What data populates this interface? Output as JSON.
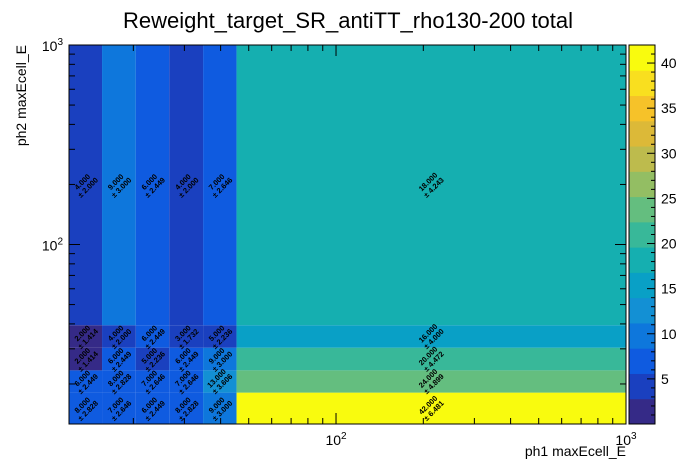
{
  "chart_data": {
    "type": "heatmap",
    "title": "Reweight_target_SR_antiTT_rho130-200 total",
    "xlabel": "ph1 maxEcell_E",
    "ylabel": "ph2 maxEcell_E",
    "x_scale": "log",
    "y_scale": "log",
    "xlim": [
      12,
      1000
    ],
    "ylim": [
      12.6,
      1000
    ],
    "x_ticks": [
      {
        "value": 100,
        "base": "10",
        "exp": "2"
      },
      {
        "value": 1000,
        "base": "10",
        "exp": "3"
      }
    ],
    "y_ticks": [
      {
        "value": 100,
        "base": "10",
        "exp": "2"
      },
      {
        "value": 1000,
        "base": "10",
        "exp": "3"
      }
    ],
    "colorbar": {
      "min": 0,
      "max": 42,
      "ticks": [
        5,
        10,
        15,
        20,
        25,
        30,
        35,
        40
      ]
    },
    "palette": [
      "#352a87",
      "#1a40bf",
      "#0f5be0",
      "#0e77dc",
      "#1390d4",
      "#09a0c6",
      "#15afb0",
      "#38b899",
      "#64be7f",
      "#93be63",
      "#bdbb4d",
      "#dcb938",
      "#f6c229",
      "#f9df1f",
      "#f9fb0e"
    ],
    "x_edges": [
      12,
      15.6,
      20.4,
      26.6,
      34.8,
      45.4,
      1000
    ],
    "y_edges": [
      12.6,
      18.1,
      23.4,
      30.4,
      39.4,
      1000
    ],
    "cells": [
      {
        "ix": 0,
        "iy": 0,
        "value": 8.0,
        "value_label": "8.000",
        "error_label": "± 2.828"
      },
      {
        "ix": 1,
        "iy": 0,
        "value": 7.0,
        "value_label": "7.000",
        "error_label": "± 2.646"
      },
      {
        "ix": 2,
        "iy": 0,
        "value": 6.0,
        "value_label": "6.000",
        "error_label": "± 2.449"
      },
      {
        "ix": 3,
        "iy": 0,
        "value": 8.0,
        "value_label": "8.000",
        "error_label": "± 2.828"
      },
      {
        "ix": 4,
        "iy": 0,
        "value": 9.0,
        "value_label": "9.000",
        "error_label": "± 3.000"
      },
      {
        "ix": 5,
        "iy": 0,
        "value": 42.0,
        "value_label": "42.000",
        "error_label": "± 6.481"
      },
      {
        "ix": 0,
        "iy": 1,
        "value": 6.0,
        "value_label": "6.000",
        "error_label": "± 2.449"
      },
      {
        "ix": 1,
        "iy": 1,
        "value": 8.0,
        "value_label": "8.000",
        "error_label": "± 2.828"
      },
      {
        "ix": 2,
        "iy": 1,
        "value": 7.0,
        "value_label": "7.000",
        "error_label": "± 2.646"
      },
      {
        "ix": 3,
        "iy": 1,
        "value": 7.0,
        "value_label": "7.000",
        "error_label": "± 2.646"
      },
      {
        "ix": 4,
        "iy": 1,
        "value": 13.0,
        "value_label": "13.000",
        "error_label": "± 3.606"
      },
      {
        "ix": 5,
        "iy": 1,
        "value": 24.0,
        "value_label": "24.000",
        "error_label": "± 4.899"
      },
      {
        "ix": 0,
        "iy": 2,
        "value": 2.0,
        "value_label": "2.000",
        "error_label": "± 1.414"
      },
      {
        "ix": 1,
        "iy": 2,
        "value": 6.0,
        "value_label": "6.000",
        "error_label": "± 2.449"
      },
      {
        "ix": 2,
        "iy": 2,
        "value": 5.0,
        "value_label": "5.000",
        "error_label": "± 2.236"
      },
      {
        "ix": 3,
        "iy": 2,
        "value": 6.0,
        "value_label": "6.000",
        "error_label": "± 2.449"
      },
      {
        "ix": 4,
        "iy": 2,
        "value": 9.0,
        "value_label": "9.000",
        "error_label": "± 3.000"
      },
      {
        "ix": 5,
        "iy": 2,
        "value": 20.0,
        "value_label": "20.000",
        "error_label": "± 4.472"
      },
      {
        "ix": 0,
        "iy": 3,
        "value": 2.0,
        "value_label": "2.000",
        "error_label": "± 1.414"
      },
      {
        "ix": 1,
        "iy": 3,
        "value": 4.0,
        "value_label": "4.000",
        "error_label": "± 2.000"
      },
      {
        "ix": 2,
        "iy": 3,
        "value": 6.0,
        "value_label": "6.000",
        "error_label": "± 2.449"
      },
      {
        "ix": 3,
        "iy": 3,
        "value": 3.0,
        "value_label": "3.000",
        "error_label": "± 1.732"
      },
      {
        "ix": 4,
        "iy": 3,
        "value": 5.0,
        "value_label": "5.000",
        "error_label": "± 2.236"
      },
      {
        "ix": 5,
        "iy": 3,
        "value": 16.0,
        "value_label": "16.000",
        "error_label": "± 4.000"
      },
      {
        "ix": 0,
        "iy": 4,
        "value": 4.0,
        "value_label": "4.000",
        "error_label": "± 2.000"
      },
      {
        "ix": 1,
        "iy": 4,
        "value": 9.0,
        "value_label": "9.000",
        "error_label": "± 3.000"
      },
      {
        "ix": 2,
        "iy": 4,
        "value": 6.0,
        "value_label": "6.000",
        "error_label": "± 2.449"
      },
      {
        "ix": 3,
        "iy": 4,
        "value": 4.0,
        "value_label": "4.000",
        "error_label": "± 2.000"
      },
      {
        "ix": 4,
        "iy": 4,
        "value": 7.0,
        "value_label": "7.000",
        "error_label": "± 2.646"
      },
      {
        "ix": 5,
        "iy": 4,
        "value": 18.0,
        "value_label": "18.000",
        "error_label": "± 4.243"
      }
    ]
  }
}
